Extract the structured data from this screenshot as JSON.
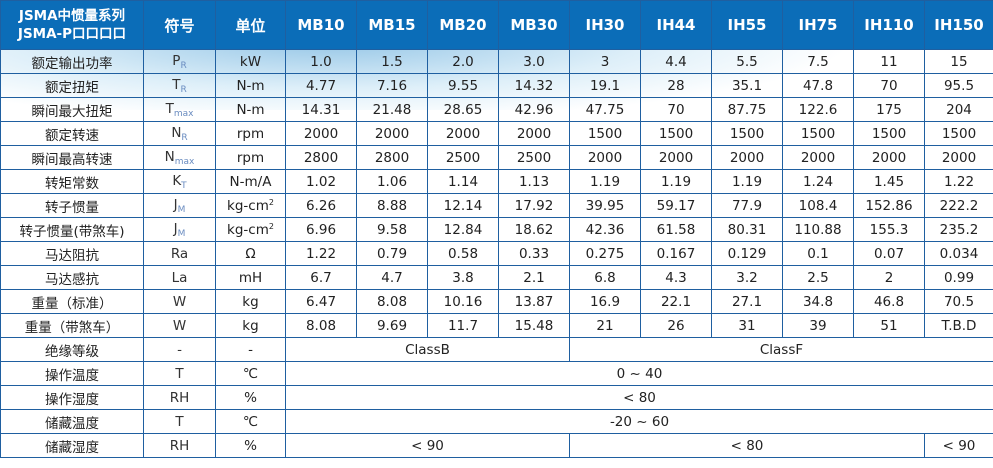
{
  "header": {
    "series_line1": "JSMA中惯量系列",
    "series_line2": "JSMA-P口口口口",
    "symbol": "符号",
    "unit": "单位",
    "models": [
      "MB10",
      "MB15",
      "MB20",
      "MB30",
      "IH30",
      "IH44",
      "IH55",
      "IH75",
      "IH110",
      "IH150"
    ]
  },
  "rows": [
    {
      "name": "额定输出功率",
      "sym": "P",
      "sub": "R",
      "unit": "kW",
      "values": [
        "1.0",
        "1.5",
        "2.0",
        "3.0",
        "3",
        "4.4",
        "5.5",
        "7.5",
        "11",
        "15"
      ]
    },
    {
      "name": "额定扭矩",
      "sym": "T",
      "sub": "R",
      "unit": "N-m",
      "values": [
        "4.77",
        "7.16",
        "9.55",
        "14.32",
        "19.1",
        "28",
        "35.1",
        "47.8",
        "70",
        "95.5"
      ]
    },
    {
      "name": "瞬间最大扭矩",
      "sym": "T",
      "sub": "max",
      "unit": "N-m",
      "values": [
        "14.31",
        "21.48",
        "28.65",
        "42.96",
        "47.75",
        "70",
        "87.75",
        "122.6",
        "175",
        "204"
      ]
    },
    {
      "name": "额定转速",
      "sym": "N",
      "sub": "R",
      "unit": "rpm",
      "values": [
        "2000",
        "2000",
        "2000",
        "2000",
        "1500",
        "1500",
        "1500",
        "1500",
        "1500",
        "1500"
      ]
    },
    {
      "name": "瞬间最高转速",
      "sym": "N",
      "sub": "max",
      "unit": "rpm",
      "values": [
        "2800",
        "2800",
        "2500",
        "2500",
        "2000",
        "2000",
        "2000",
        "2000",
        "2000",
        "2000"
      ]
    },
    {
      "name": "转矩常数",
      "sym": "K",
      "sub": "T",
      "unit": "N-m/A",
      "values": [
        "1.02",
        "1.06",
        "1.14",
        "1.13",
        "1.19",
        "1.19",
        "1.19",
        "1.24",
        "1.45",
        "1.22"
      ]
    },
    {
      "name": "转子惯量",
      "sym": "J",
      "sub": "M",
      "unit": "kg-cm",
      "unit_sup": "2",
      "values": [
        "6.26",
        "8.88",
        "12.14",
        "17.92",
        "39.95",
        "59.17",
        "77.9",
        "108.4",
        "152.86",
        "222.2"
      ]
    },
    {
      "name": "转子惯量(带煞车)",
      "sym": "J",
      "sub": "M",
      "unit": "kg-cm",
      "unit_sup": "2",
      "values": [
        "6.96",
        "9.58",
        "12.84",
        "18.62",
        "42.36",
        "61.58",
        "80.31",
        "110.88",
        "155.3",
        "235.2"
      ]
    },
    {
      "name": "马达阻抗",
      "sym": "Ra",
      "unit": "Ω",
      "values": [
        "1.22",
        "0.79",
        "0.58",
        "0.33",
        "0.275",
        "0.167",
        "0.129",
        "0.1",
        "0.07",
        "0.034"
      ]
    },
    {
      "name": "马达感抗",
      "sym": "La",
      "unit": "mH",
      "values": [
        "6.7",
        "4.7",
        "3.8",
        "2.1",
        "6.8",
        "4.3",
        "3.2",
        "2.5",
        "2",
        "0.99"
      ]
    },
    {
      "name": "重量（标准）",
      "sym": "W",
      "unit": "kg",
      "values": [
        "6.47",
        "8.08",
        "10.16",
        "13.87",
        "16.9",
        "22.1",
        "27.1",
        "34.8",
        "46.8",
        "70.5"
      ]
    },
    {
      "name": "重量（带煞车）",
      "sym": "W",
      "unit": "kg",
      "values": [
        "8.08",
        "9.69",
        "11.7",
        "15.48",
        "21",
        "26",
        "31",
        "39",
        "51",
        "T.B.D"
      ]
    },
    {
      "name": "绝缘等级",
      "sym": "-",
      "unit": "-",
      "spans": [
        {
          "text": "ClassB",
          "cols": 4
        },
        {
          "text": "ClassF",
          "cols": 6
        }
      ]
    },
    {
      "name": "操作温度",
      "sym": "T",
      "unit": "℃",
      "spans": [
        {
          "text": "0 ~ 40",
          "cols": 10
        }
      ]
    },
    {
      "name": "操作湿度",
      "sym": "RH",
      "unit": "%",
      "spans": [
        {
          "text": "< 80",
          "cols": 10
        }
      ]
    },
    {
      "name": "储藏温度",
      "sym": "T",
      "unit": "℃",
      "spans": [
        {
          "text": "-20 ~ 60",
          "cols": 10
        }
      ]
    },
    {
      "name": "储藏湿度",
      "sym": "RH",
      "unit": "%",
      "spans": [
        {
          "text": "< 90",
          "cols": 4
        },
        {
          "text": "< 80",
          "cols": 5
        },
        {
          "text": "< 90",
          "cols": 1
        }
      ]
    }
  ],
  "colors": {
    "header_bg": "#0b6db8",
    "border": "#1f5fa0",
    "wave": "#3c96d2"
  }
}
